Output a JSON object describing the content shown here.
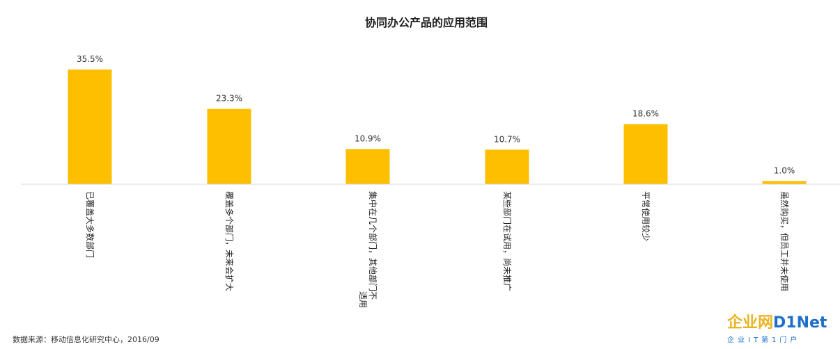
{
  "chart_data": {
    "type": "bar",
    "title": "协同办公产品的应用范围",
    "categories": [
      "已覆盖大多数部门",
      "覆盖多个部门，未来会扩大",
      "集中在几个部门，其他部门不适用",
      "某些部门在试用，尚未推广",
      "平常使用较少",
      "虽然购买，但员工并未使用"
    ],
    "category_lines": [
      [
        "已覆盖大多数部门"
      ],
      [
        "覆盖多个部门，未来会扩大"
      ],
      [
        "集中在几个部门，其他部门不",
        "适用"
      ],
      [
        "某些部门在试用，尚未推广"
      ],
      [
        "平常使用较少"
      ],
      [
        "虽然购买，但员工并未使用"
      ]
    ],
    "values": [
      35.5,
      23.3,
      10.9,
      10.7,
      18.6,
      1.0
    ],
    "data_labels": [
      "35.5%",
      "23.3%",
      "10.9%",
      "10.7%",
      "18.6%",
      "1.0%"
    ],
    "bar_color": "#FDBF00",
    "axis_color": "#D9D9D9",
    "grid": false,
    "legend": "none",
    "ylim": [
      0,
      35.5
    ]
  },
  "source": "数据来源：移动信息化研究中心，2016/09",
  "watermark": {
    "logo_cn": "企业网",
    "logo_en": "D1Net",
    "tagline": "企业IT第1门户"
  }
}
